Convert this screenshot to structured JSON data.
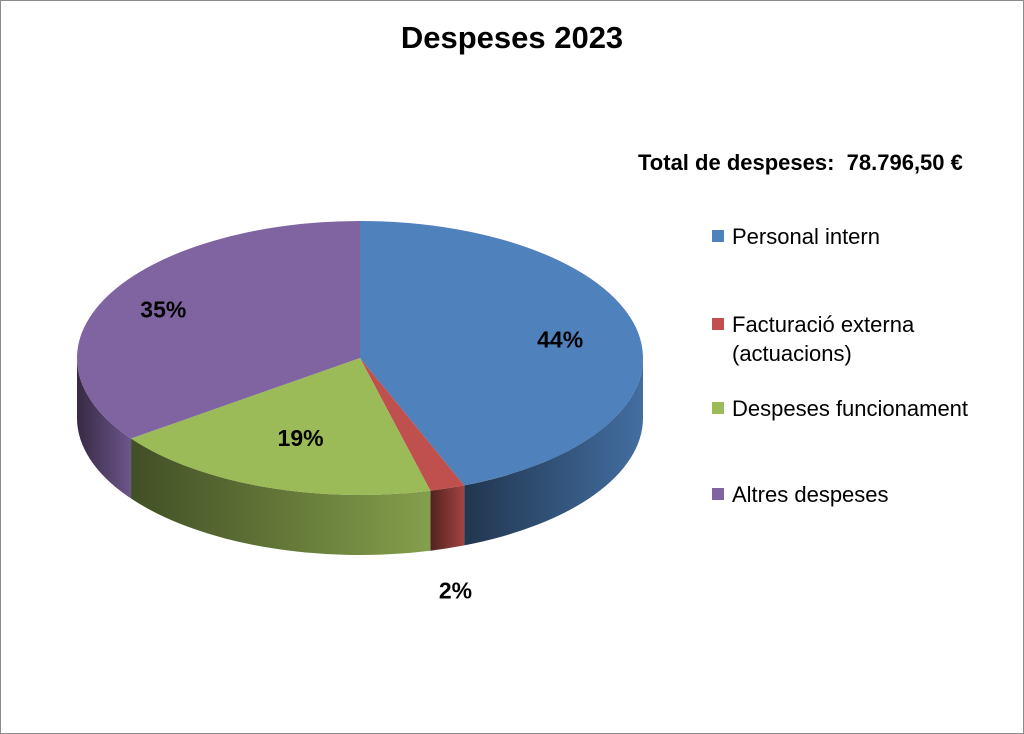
{
  "chart_data": {
    "type": "pie",
    "title": "Despeses 2023",
    "subtitle": "Total de despeses:  78.796,50 €",
    "categories": [
      "Personal intern",
      "Facturació externa (actuacions)",
      "Despeses funcionament",
      "Altres despeses"
    ],
    "values": [
      44,
      2,
      19,
      35
    ],
    "value_labels": [
      "44%",
      "2%",
      "19%",
      "35%"
    ],
    "colors": [
      "#4f81bd",
      "#c0504d",
      "#9bbb59",
      "#8064a2"
    ],
    "legend_position": "right",
    "style": "3d"
  },
  "legend": {
    "items": [
      {
        "line1": "Personal intern",
        "line2": ""
      },
      {
        "line1": "Facturació externa",
        "line2": "(actuacions)"
      },
      {
        "line1": "Despeses funcionament",
        "line2": ""
      },
      {
        "line1": "Altres despeses",
        "line2": ""
      }
    ]
  }
}
